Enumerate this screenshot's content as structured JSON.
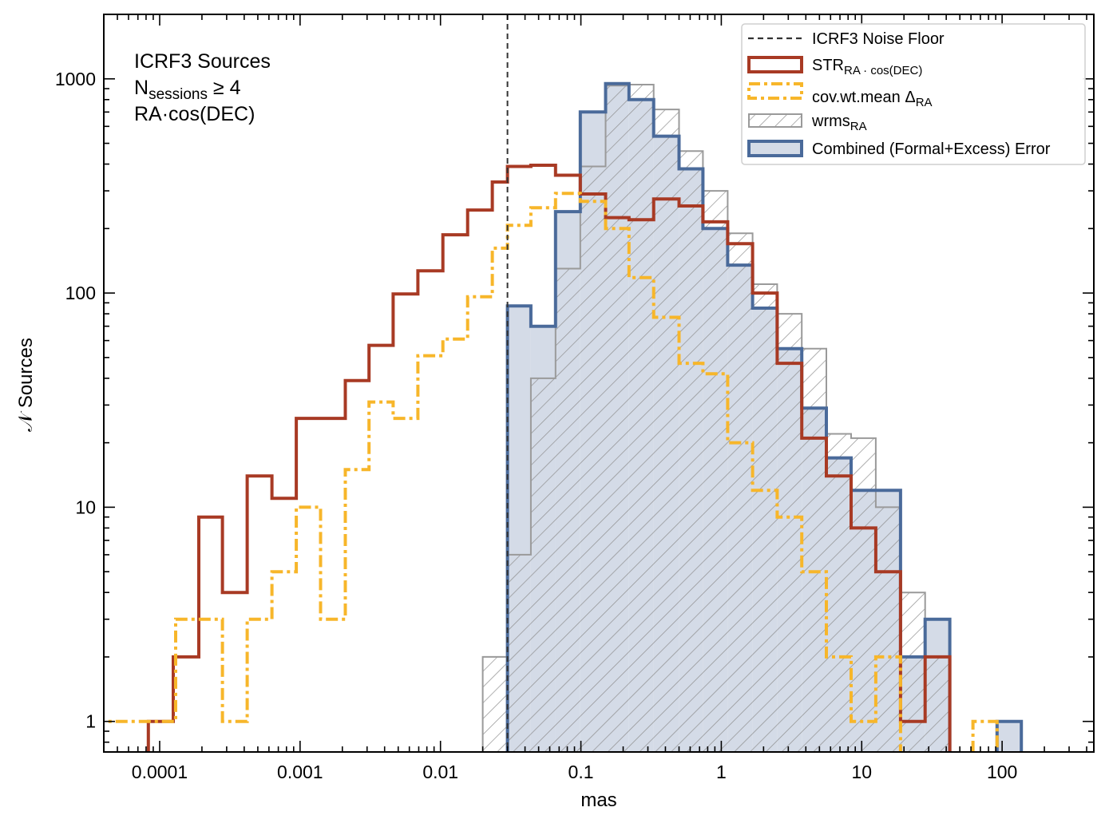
{
  "chart_data": {
    "type": "histogram",
    "x_scale": "log",
    "y_scale": "log",
    "xlim": [
      4e-05,
      450
    ],
    "ylim": [
      0.72,
      2000
    ],
    "xlabel": "mas",
    "ylabel": "𝒩 Sources",
    "xticks": [
      {
        "value": 0.0001,
        "label": "0.0001"
      },
      {
        "value": 0.001,
        "label": "0.001"
      },
      {
        "value": 0.01,
        "label": "0.01"
      },
      {
        "value": 0.1,
        "label": "0.1"
      },
      {
        "value": 1,
        "label": "1"
      },
      {
        "value": 10,
        "label": "10"
      },
      {
        "value": 100,
        "label": "100"
      }
    ],
    "yticks": [
      {
        "value": 1,
        "label": "1"
      },
      {
        "value": 10,
        "label": "10"
      },
      {
        "value": 100,
        "label": "100"
      },
      {
        "value": 1000,
        "label": "1000"
      }
    ],
    "annotation": {
      "line1": "ICRF3 Sources",
      "line2_main": "N",
      "line2_sub": "sessions",
      "line2_rest": " ≥ 4",
      "line3": "RA·cos(DEC)"
    },
    "noise_floor": {
      "x": 0.03,
      "label": "ICRF3 Noise Floor",
      "color": "#333333"
    },
    "legend": {
      "placement": "top-right",
      "noise": {
        "label": "ICRF3 Noise Floor"
      },
      "str": {
        "main": "STR",
        "sub": "RA · cos(DEC)"
      },
      "cov": {
        "main": "cov.wt.mean Δ",
        "sub": "RA"
      },
      "wrms": {
        "main": "wrms",
        "sub": "RA"
      },
      "combined": {
        "label": "Combined (Formal+Excess) Error"
      }
    },
    "series": [
      {
        "name": "wrms_RA",
        "style": "hatched",
        "color": "#9a9a9a",
        "bins": [
          [
            0.02,
            0.03,
            2
          ],
          [
            0.03,
            0.044,
            6
          ],
          [
            0.044,
            0.066,
            40
          ],
          [
            0.066,
            0.099,
            130
          ],
          [
            0.099,
            0.15,
            390
          ],
          [
            0.15,
            0.22,
            930
          ],
          [
            0.22,
            0.33,
            940
          ],
          [
            0.33,
            0.5,
            720
          ],
          [
            0.5,
            0.74,
            460
          ],
          [
            0.74,
            1.11,
            300
          ],
          [
            1.11,
            1.67,
            190
          ],
          [
            1.67,
            2.5,
            110
          ],
          [
            2.5,
            3.74,
            80
          ],
          [
            3.74,
            5.6,
            55
          ],
          [
            5.6,
            8.4,
            22
          ],
          [
            8.4,
            12.6,
            21
          ],
          [
            12.6,
            18.9,
            10
          ],
          [
            18.9,
            28.3,
            4
          ],
          [
            28.3,
            42.4,
            2
          ]
        ]
      },
      {
        "name": "Combined (Formal+Excess) Error",
        "style": "filled-step",
        "color": "#4a6a9a",
        "fill": "#d4dbe7",
        "bins": [
          [
            0.03,
            0.044,
            87
          ],
          [
            0.044,
            0.066,
            70
          ],
          [
            0.066,
            0.099,
            240
          ],
          [
            0.099,
            0.15,
            700
          ],
          [
            0.15,
            0.22,
            950
          ],
          [
            0.22,
            0.33,
            800
          ],
          [
            0.33,
            0.5,
            540
          ],
          [
            0.5,
            0.74,
            380
          ],
          [
            0.74,
            1.11,
            200
          ],
          [
            1.11,
            1.67,
            135
          ],
          [
            1.67,
            2.5,
            85
          ],
          [
            2.5,
            3.74,
            55
          ],
          [
            3.74,
            5.6,
            29
          ],
          [
            5.6,
            8.4,
            17
          ],
          [
            8.4,
            12.6,
            12
          ],
          [
            12.6,
            18.9,
            12
          ],
          [
            18.9,
            28.3,
            2
          ],
          [
            28.3,
            42.4,
            3
          ],
          [
            92,
            137,
            1
          ]
        ]
      },
      {
        "name": "STR_RA·cos(DEC)",
        "style": "step",
        "color": "#a83a24",
        "bins": [
          [
            8.3e-05,
            0.000125,
            1
          ],
          [
            0.000125,
            0.00019,
            2
          ],
          [
            0.00019,
            0.00028,
            9
          ],
          [
            0.00028,
            0.00042,
            4
          ],
          [
            0.00042,
            0.00063,
            14
          ],
          [
            0.00063,
            0.00094,
            11
          ],
          [
            0.00094,
            0.0014,
            26
          ],
          [
            0.0014,
            0.0021,
            26
          ],
          [
            0.0021,
            0.0031,
            39
          ],
          [
            0.0031,
            0.0046,
            57
          ],
          [
            0.0046,
            0.0069,
            99
          ],
          [
            0.0069,
            0.0104,
            127
          ],
          [
            0.0104,
            0.0156,
            187
          ],
          [
            0.0156,
            0.0234,
            244
          ],
          [
            0.0234,
            0.03,
            330
          ],
          [
            0.03,
            0.044,
            390
          ],
          [
            0.044,
            0.066,
            395
          ],
          [
            0.066,
            0.099,
            355
          ],
          [
            0.099,
            0.15,
            290
          ],
          [
            0.15,
            0.22,
            225
          ],
          [
            0.22,
            0.33,
            220
          ],
          [
            0.33,
            0.5,
            275
          ],
          [
            0.5,
            0.74,
            255
          ],
          [
            0.74,
            1.11,
            215
          ],
          [
            1.11,
            1.67,
            170
          ],
          [
            1.67,
            2.5,
            100
          ],
          [
            2.5,
            3.74,
            47
          ],
          [
            3.74,
            5.6,
            21
          ],
          [
            5.6,
            8.4,
            14
          ],
          [
            8.4,
            12.6,
            8
          ],
          [
            12.6,
            18.9,
            5
          ],
          [
            18.9,
            28.3,
            1
          ],
          [
            28.3,
            42.4,
            2
          ]
        ]
      },
      {
        "name": "cov.wt.mean Δ_RA",
        "style": "dashdot-step",
        "color": "#f7b62a",
        "bins": [
          [
            3.8e-05,
            5.8e-05,
            1
          ],
          [
            5.8e-05,
            8.7e-05,
            1
          ],
          [
            8.7e-05,
            0.00013,
            1
          ],
          [
            0.00013,
            0.00019,
            3
          ],
          [
            0.00019,
            0.00028,
            3
          ],
          [
            0.00028,
            0.00042,
            1
          ],
          [
            0.00042,
            0.00063,
            3
          ],
          [
            0.00063,
            0.00094,
            5
          ],
          [
            0.00094,
            0.0014,
            10
          ],
          [
            0.0014,
            0.0021,
            3
          ],
          [
            0.0021,
            0.0031,
            15
          ],
          [
            0.0031,
            0.0046,
            31
          ],
          [
            0.0046,
            0.0069,
            26
          ],
          [
            0.0069,
            0.0104,
            51
          ],
          [
            0.0104,
            0.0156,
            61
          ],
          [
            0.0156,
            0.0234,
            96
          ],
          [
            0.0234,
            0.03,
            162
          ],
          [
            0.03,
            0.044,
            207
          ],
          [
            0.044,
            0.066,
            250
          ],
          [
            0.066,
            0.099,
            292
          ],
          [
            0.099,
            0.15,
            268
          ],
          [
            0.15,
            0.22,
            200
          ],
          [
            0.22,
            0.33,
            118
          ],
          [
            0.33,
            0.5,
            77
          ],
          [
            0.5,
            0.74,
            47
          ],
          [
            0.74,
            1.11,
            42
          ],
          [
            1.11,
            1.67,
            20
          ],
          [
            1.67,
            2.5,
            12
          ],
          [
            2.5,
            3.74,
            9
          ],
          [
            3.74,
            5.6,
            5
          ],
          [
            5.6,
            8.4,
            2
          ],
          [
            8.4,
            12.6,
            1
          ],
          [
            12.6,
            18.9,
            2
          ],
          [
            18.9,
            28.3,
            0
          ],
          [
            62,
            92,
            1
          ]
        ]
      }
    ]
  }
}
